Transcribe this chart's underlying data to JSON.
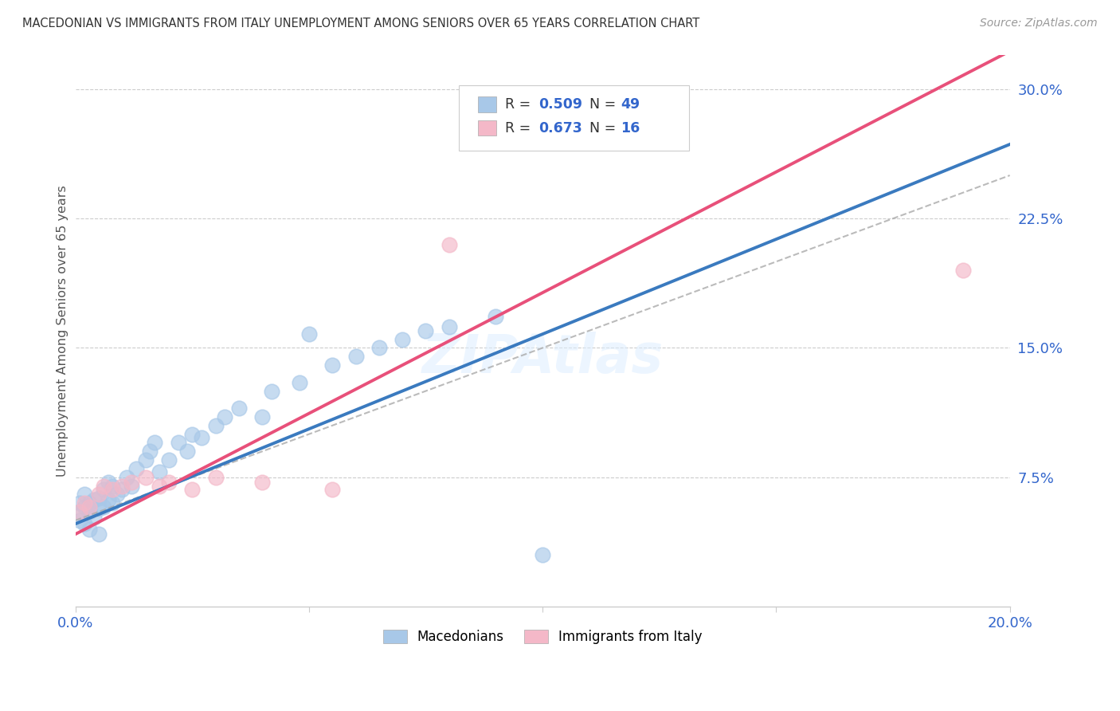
{
  "title": "MACEDONIAN VS IMMIGRANTS FROM ITALY UNEMPLOYMENT AMONG SENIORS OVER 65 YEARS CORRELATION CHART",
  "source": "Source: ZipAtlas.com",
  "ylabel": "Unemployment Among Seniors over 65 years",
  "xlim": [
    0.0,
    0.2
  ],
  "ylim": [
    0.0,
    0.32
  ],
  "xtick_vals": [
    0.0,
    0.05,
    0.1,
    0.15,
    0.2
  ],
  "xtick_labels": [
    "0.0%",
    "",
    "",
    "",
    "20.0%"
  ],
  "ytick_vals": [
    0.0,
    0.075,
    0.15,
    0.225,
    0.3
  ],
  "ytick_labels": [
    "",
    "7.5%",
    "15.0%",
    "22.5%",
    "30.0%"
  ],
  "blue_color": "#a8c8e8",
  "pink_color": "#f4b8c8",
  "blue_line_color": "#3a7abf",
  "pink_line_color": "#e8507a",
  "dash_color": "#aaaaaa",
  "blue_intercept": 0.048,
  "blue_slope": 1.1,
  "pink_intercept": 0.042,
  "pink_slope": 1.4,
  "dash_intercept": 0.05,
  "dash_slope": 1.0,
  "mac_x": [
    0.001,
    0.001,
    0.001,
    0.002,
    0.002,
    0.002,
    0.003,
    0.003,
    0.003,
    0.004,
    0.004,
    0.005,
    0.005,
    0.005,
    0.006,
    0.006,
    0.007,
    0.007,
    0.008,
    0.008,
    0.009,
    0.01,
    0.011,
    0.012,
    0.013,
    0.015,
    0.016,
    0.017,
    0.018,
    0.02,
    0.022,
    0.024,
    0.025,
    0.027,
    0.03,
    0.032,
    0.035,
    0.04,
    0.042,
    0.048,
    0.05,
    0.055,
    0.06,
    0.065,
    0.07,
    0.075,
    0.08,
    0.09,
    0.1
  ],
  "mac_y": [
    0.055,
    0.06,
    0.05,
    0.058,
    0.065,
    0.048,
    0.06,
    0.055,
    0.045,
    0.062,
    0.052,
    0.057,
    0.063,
    0.042,
    0.068,
    0.058,
    0.072,
    0.062,
    0.06,
    0.07,
    0.065,
    0.068,
    0.075,
    0.07,
    0.08,
    0.085,
    0.09,
    0.095,
    0.078,
    0.085,
    0.095,
    0.09,
    0.1,
    0.098,
    0.105,
    0.11,
    0.115,
    0.11,
    0.125,
    0.13,
    0.158,
    0.14,
    0.145,
    0.15,
    0.155,
    0.16,
    0.162,
    0.168,
    0.03
  ],
  "ita_x": [
    0.001,
    0.002,
    0.003,
    0.005,
    0.006,
    0.008,
    0.01,
    0.012,
    0.015,
    0.018,
    0.02,
    0.025,
    0.03,
    0.04,
    0.055,
    0.08,
    0.19
  ],
  "ita_y": [
    0.055,
    0.06,
    0.058,
    0.065,
    0.07,
    0.068,
    0.07,
    0.072,
    0.075,
    0.07,
    0.072,
    0.068,
    0.075,
    0.072,
    0.068,
    0.21,
    0.195
  ]
}
